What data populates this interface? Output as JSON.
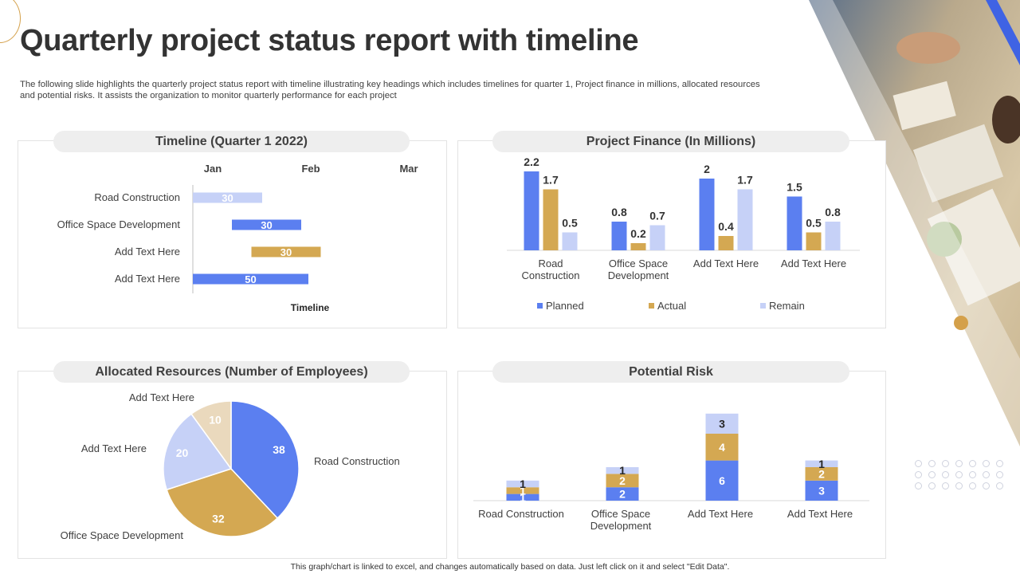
{
  "page": {
    "title": "Quarterly project status report with timeline",
    "description": "The following slide highlights the quarterly project status report with timeline illustrating key headings which includes timelines for quarter 1, Project finance in millions, allocated resources and potential risks. It assists the organization to monitor quarterly performance for each project",
    "footer": "This graph/chart is linked to excel, and changes automatically based on data. Just left click on it and select \"Edit Data\"."
  },
  "colors": {
    "blue": "#5b7ff0",
    "gold": "#d4a852",
    "light_blue": "#c6d1f7",
    "beige": "#ead9bd",
    "accent_orange": "#d4a04a"
  },
  "panels": {
    "timeline": {
      "header": "Timeline (Quarter 1 2022)"
    },
    "finance": {
      "header": "Project Finance (In Millions)"
    },
    "resources": {
      "header": "Allocated Resources (Number of Employees)"
    },
    "risk": {
      "header": "Potential Risk"
    }
  },
  "chart_data": [
    {
      "id": "timeline",
      "type": "bar",
      "orientation": "horizontal",
      "title": "Timeline (Quarter 1 2022)",
      "xlabel": "Timeline",
      "x_ticks": [
        "Jan",
        "Feb",
        "Mar"
      ],
      "categories": [
        "Road Construction",
        "Office Space Development",
        "Add Text Here",
        "Add Text Here"
      ],
      "start_day": [
        0,
        10,
        15,
        0
      ],
      "duration_days": [
        30,
        30,
        30,
        50
      ],
      "bar_colors": [
        "light_blue",
        "blue",
        "gold",
        "blue"
      ]
    },
    {
      "id": "finance",
      "type": "bar",
      "title": "Project Finance (In Millions)",
      "categories": [
        "Road Construction",
        "Office Space Development",
        "Add Text Here",
        "Add Text Here"
      ],
      "series": [
        {
          "name": "Planned",
          "color": "blue",
          "values": [
            2.2,
            0.8,
            2,
            1.5
          ]
        },
        {
          "name": "Actual",
          "color": "gold",
          "values": [
            1.7,
            0.2,
            0.4,
            0.5
          ]
        },
        {
          "name": "Remain",
          "color": "light_blue",
          "values": [
            0.5,
            0.7,
            1.7,
            0.8
          ]
        }
      ],
      "ylim": [
        0,
        2.4
      ],
      "legend": "bottom"
    },
    {
      "id": "resources",
      "type": "pie",
      "title": "Allocated Resources (Number of Employees)",
      "slices": [
        {
          "label": "Road Construction",
          "value": 38,
          "color": "blue"
        },
        {
          "label": "Office Space Development",
          "value": 32,
          "color": "gold"
        },
        {
          "label": "Add Text Here",
          "value": 20,
          "color": "light_blue"
        },
        {
          "label": "Add Text Here",
          "value": 10,
          "color": "beige"
        }
      ]
    },
    {
      "id": "risk",
      "type": "bar",
      "stacked": true,
      "title": "Potential Risk",
      "categories": [
        "Road Construction",
        "Office Space Development",
        "Add Text Here",
        "Add Text Here"
      ],
      "series": [
        {
          "color": "blue",
          "values": [
            1,
            2,
            6,
            3
          ]
        },
        {
          "color": "gold",
          "values": [
            1,
            2,
            4,
            2
          ]
        },
        {
          "color": "light_blue",
          "values": [
            1,
            1,
            3,
            1
          ]
        }
      ],
      "ylim": [
        0,
        13
      ]
    }
  ]
}
